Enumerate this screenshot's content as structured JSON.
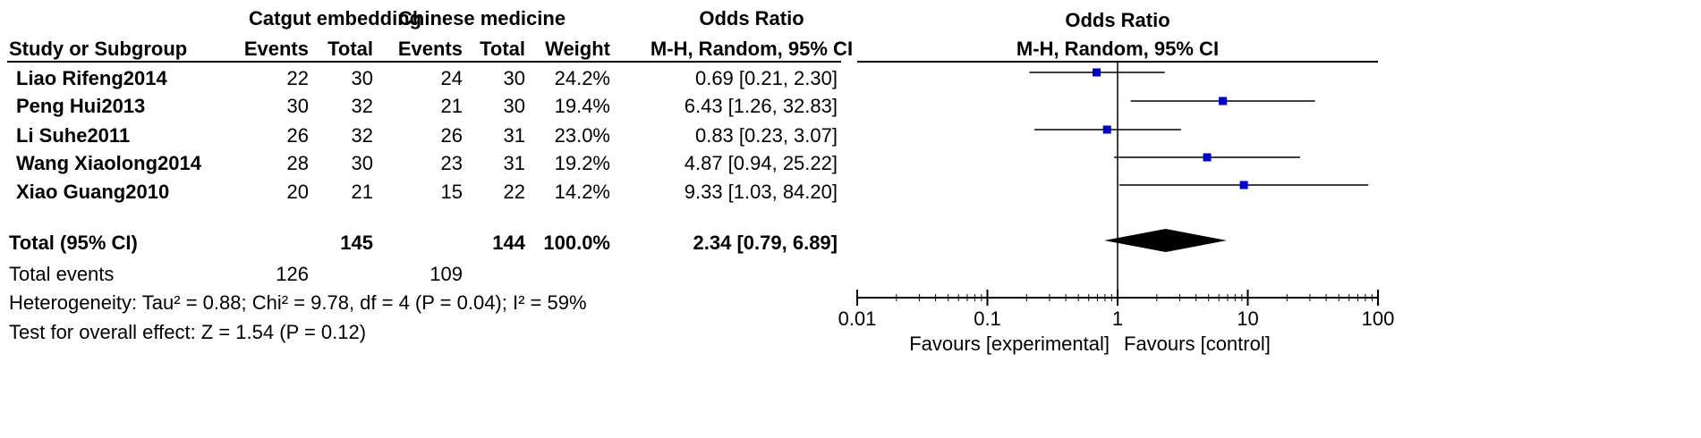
{
  "table": {
    "group1_label": "Catgut embedding",
    "group2_label": "Chinese medicine",
    "or_header": "Odds Ratio",
    "or_subheader": "M-H, Random, 95% CI",
    "columns": {
      "study": "Study or Subgroup",
      "events1": "Events",
      "total1": "Total",
      "events2": "Events",
      "total2": "Total",
      "weight": "Weight"
    },
    "rows": [
      {
        "study": "Liao Rifeng2014",
        "events1": "22",
        "total1": "30",
        "events2": "24",
        "total2": "30",
        "weight": "24.2%",
        "ci": "0.69 [0.21, 2.30]"
      },
      {
        "study": "Peng Hui2013",
        "events1": "30",
        "total1": "32",
        "events2": "21",
        "total2": "30",
        "weight": "19.4%",
        "ci": "6.43 [1.26, 32.83]"
      },
      {
        "study": "Li Suhe2011",
        "events1": "26",
        "total1": "32",
        "events2": "26",
        "total2": "31",
        "weight": "23.0%",
        "ci": "0.83 [0.23, 3.07]"
      },
      {
        "study": "Wang Xiaolong2014",
        "events1": "28",
        "total1": "30",
        "events2": "23",
        "total2": "31",
        "weight": "19.2%",
        "ci": "4.87 [0.94, 25.22]"
      },
      {
        "study": "Xiao Guang2010",
        "events1": "20",
        "total1": "21",
        "events2": "15",
        "total2": "22",
        "weight": "14.2%",
        "ci": "9.33 [1.03, 84.20]"
      }
    ],
    "total": {
      "label": "Total (95% CI)",
      "total1": "145",
      "total2": "144",
      "weight": "100.0%",
      "ci": "2.34 [0.79, 6.89]"
    },
    "total_events": {
      "label": "Total events",
      "events1": "126",
      "events2": "109"
    },
    "heterogeneity": "Heterogeneity: Tau² = 0.88; Chi² = 9.78, df = 4 (P = 0.04); I² = 59%",
    "overall_effect": "Test for overall effect: Z = 1.54 (P = 0.12)"
  },
  "chart_data": {
    "type": "forest",
    "title": "Odds Ratio",
    "subtitle": "M-H, Random, 95% CI",
    "x_scale": "log",
    "xlim": [
      0.01,
      100
    ],
    "x_ticks": [
      0.01,
      0.1,
      1,
      10,
      100
    ],
    "x_tick_labels": [
      "0.01",
      "0.1",
      "1",
      "10",
      "100"
    ],
    "reference_line": 1,
    "favours_left": "Favours [experimental]",
    "favours_right": "Favours [control]",
    "marker_color": "#0000cc",
    "studies": [
      {
        "name": "Liao Rifeng2014",
        "or": 0.69,
        "lower": 0.21,
        "upper": 2.3,
        "weight": 24.2
      },
      {
        "name": "Peng Hui2013",
        "or": 6.43,
        "lower": 1.26,
        "upper": 32.83,
        "weight": 19.4
      },
      {
        "name": "Li Suhe2011",
        "or": 0.83,
        "lower": 0.23,
        "upper": 3.07,
        "weight": 23.0
      },
      {
        "name": "Wang Xiaolong2014",
        "or": 4.87,
        "lower": 0.94,
        "upper": 25.22,
        "weight": 19.2
      },
      {
        "name": "Xiao Guang2010",
        "or": 9.33,
        "lower": 1.03,
        "upper": 84.2,
        "weight": 14.2
      }
    ],
    "pooled": {
      "or": 2.34,
      "lower": 0.79,
      "upper": 6.89
    }
  }
}
